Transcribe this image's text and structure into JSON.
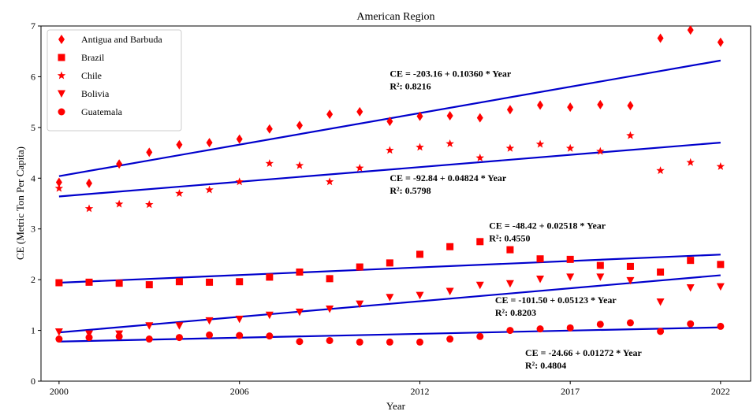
{
  "chart_data": {
    "type": "scatter",
    "title": "American Region",
    "xlabel": "Year",
    "ylabel": "CE (Metric Ton Per Capita)",
    "xlim": [
      1999.4,
      2023.0
    ],
    "ylim": [
      0,
      7
    ],
    "xticks": [
      2000,
      2006,
      2012,
      2017,
      2022
    ],
    "yticks": [
      0,
      1,
      2,
      3,
      4,
      5,
      6,
      7
    ],
    "grid": false,
    "legend_position": "top-left",
    "marker_color": "#ff0000",
    "line_color": "#0000cc",
    "x": [
      2000,
      2001,
      2002,
      2003,
      2004,
      2005,
      2006,
      2007,
      2008,
      2009,
      2010,
      2011,
      2012,
      2013,
      2014,
      2015,
      2016,
      2017,
      2018,
      2019,
      2020,
      2021,
      2022
    ],
    "series": [
      {
        "name": "Antigua and Barbuda",
        "marker": "diamond",
        "values": [
          3.92,
          3.9,
          4.28,
          4.51,
          4.66,
          4.7,
          4.77,
          4.97,
          5.04,
          5.26,
          5.31,
          5.12,
          5.22,
          5.23,
          5.19,
          5.35,
          5.44,
          5.4,
          5.45,
          5.43,
          6.76,
          6.92,
          6.68
        ]
      },
      {
        "name": "Brazil",
        "marker": "square",
        "values": [
          1.94,
          1.95,
          1.93,
          1.9,
          1.96,
          1.95,
          1.96,
          2.05,
          2.15,
          2.02,
          2.25,
          2.33,
          2.5,
          2.65,
          2.75,
          2.59,
          2.41,
          2.4,
          2.28,
          2.26,
          2.15,
          2.38,
          2.3
        ]
      },
      {
        "name": "Chile",
        "marker": "star",
        "values": [
          3.8,
          3.4,
          3.49,
          3.48,
          3.7,
          3.77,
          3.93,
          4.29,
          4.25,
          3.93,
          4.2,
          4.55,
          4.61,
          4.68,
          4.4,
          4.59,
          4.67,
          4.59,
          4.53,
          4.84,
          4.15,
          4.31,
          4.23
        ]
      },
      {
        "name": "Bolivia",
        "marker": "triangle-down",
        "values": [
          0.97,
          0.93,
          0.93,
          1.09,
          1.09,
          1.19,
          1.22,
          1.3,
          1.36,
          1.42,
          1.52,
          1.65,
          1.69,
          1.77,
          1.89,
          1.92,
          2.01,
          2.05,
          2.05,
          1.98,
          1.56,
          1.84,
          1.86
        ]
      },
      {
        "name": "Guatemala",
        "marker": "circle",
        "values": [
          0.83,
          0.86,
          0.88,
          0.83,
          0.86,
          0.91,
          0.9,
          0.89,
          0.78,
          0.8,
          0.77,
          0.77,
          0.77,
          0.83,
          0.88,
          1.0,
          1.03,
          1.05,
          1.12,
          1.15,
          0.98,
          1.13,
          1.08
        ]
      }
    ],
    "trendlines": [
      {
        "intercept": -203.16,
        "slope": 0.1036,
        "r2": "0.8216"
      },
      {
        "intercept": -92.84,
        "slope": 0.04824,
        "r2": "0.5798"
      },
      {
        "intercept": -48.42,
        "slope": 0.02518,
        "r2": "0.4550"
      },
      {
        "intercept": -101.5,
        "slope": 0.05123,
        "r2": "0.8203"
      },
      {
        "intercept": -24.66,
        "slope": 0.01272,
        "r2": "0.4804"
      }
    ],
    "annotations": [
      {
        "equation": "CE = -203.16 + 0.10360 * Year",
        "r2_label": "R²: 0.8216",
        "x": 2011.0,
        "y": 6.0
      },
      {
        "equation": "CE = -92.84 + 0.04824 * Year",
        "r2_label": "R²: 0.5798",
        "x": 2011.0,
        "y": 3.94
      },
      {
        "equation": "CE = -48.42 + 0.02518 * Year",
        "r2_label": "R²: 0.4550",
        "x": 2014.3,
        "y": 3.0
      },
      {
        "equation": "CE = -101.50 + 0.05123 * Year",
        "r2_label": "R²: 0.8203",
        "x": 2014.5,
        "y": 1.54
      },
      {
        "equation": "CE = -24.66 + 0.01272 * Year",
        "r2_label": "R²: 0.4804",
        "x": 2015.5,
        "y": 0.5
      }
    ]
  }
}
